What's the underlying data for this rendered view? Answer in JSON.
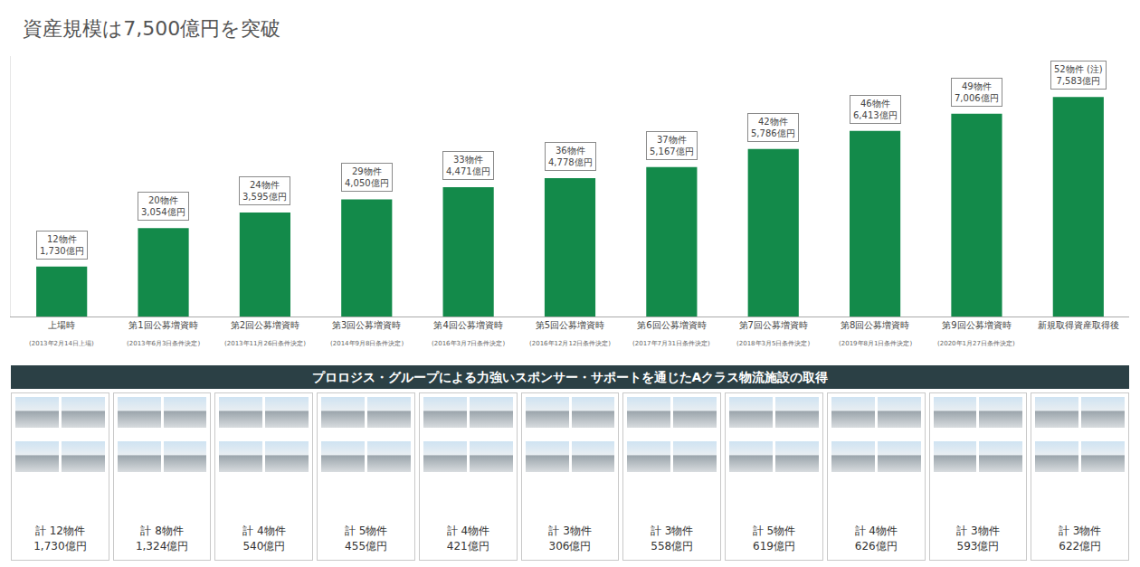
{
  "chart_data": {
    "type": "bar",
    "title": "資産規模は7,500億円を突破",
    "categories": [
      "上場時",
      "第1回公募増資時",
      "第2回公募増資時",
      "第3回公募増資時",
      "第4回公募増資時",
      "第5回公募増資時",
      "第6回公募増資時",
      "第7回公募増資時",
      "第8回公募増資時",
      "第9回公募増資時",
      "新規取得資産取得後"
    ],
    "category_notes": [
      "(2013年2月14日上場)",
      "(2013年6月3日条件決定)",
      "(2013年11月26日条件決定)",
      "(2014年9月8日条件決定)",
      "(2016年3月7日条件決定)",
      "(2016年12月12日条件決定)",
      "(2017年7月31日条件決定)",
      "(2018年3月5日条件決定)",
      "(2019年8月1日条件決定)",
      "(2020年1月27日条件決定)",
      null
    ],
    "values": [
      1730,
      3054,
      3595,
      4050,
      4471,
      4778,
      5167,
      5786,
      6413,
      7006,
      7583
    ],
    "value_labels": [
      "1,730億円",
      "3,054億円",
      "3,595億円",
      "4,050億円",
      "4,471億円",
      "4,778億円",
      "5,167億円",
      "5,786億円",
      "6,413億円",
      "7,006億円",
      "7,583億円"
    ],
    "properties": [
      12,
      20,
      24,
      29,
      33,
      36,
      37,
      42,
      46,
      49,
      52
    ],
    "property_labels": [
      "12物件",
      "20物件",
      "24物件",
      "29物件",
      "33物件",
      "36物件",
      "37物件",
      "42物件",
      "46物件",
      "49物件",
      "52物件 (注)"
    ],
    "color": "#138a4a",
    "ylim": [
      0,
      9000
    ],
    "yticks": [],
    "grid": false,
    "data_labels": true,
    "tick_labels": "x"
  },
  "banner": "プロロジス・グループによる力強いスポンサー・サポートを通じたAクラス物流施設の取得",
  "panels": [
    {
      "count_label": "計 12物件",
      "value_label": "1,730億円"
    },
    {
      "count_label": "計 8物件",
      "value_label": "1,324億円"
    },
    {
      "count_label": "計 4物件",
      "value_label": "540億円"
    },
    {
      "count_label": "計 5物件",
      "value_label": "455億円"
    },
    {
      "count_label": "計 4物件",
      "value_label": "421億円"
    },
    {
      "count_label": "計 3物件",
      "value_label": "306億円"
    },
    {
      "count_label": "計 3物件",
      "value_label": "558億円"
    },
    {
      "count_label": "計 5物件",
      "value_label": "619億円"
    },
    {
      "count_label": "計 4物件",
      "value_label": "626億円"
    },
    {
      "count_label": "計 3物件",
      "value_label": "593億円"
    },
    {
      "count_label": "計 3物件",
      "value_label": "622億円"
    }
  ]
}
